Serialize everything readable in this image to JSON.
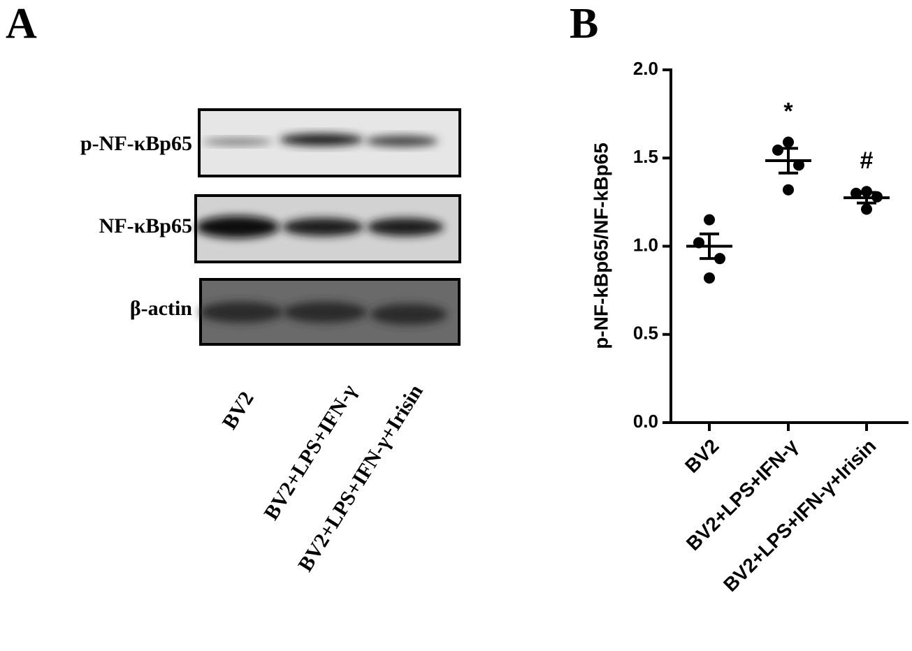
{
  "panel_a": {
    "label": "A",
    "rows": [
      "p-NF-κBp65",
      "NF-κBp65",
      "β-actin"
    ],
    "lanes": [
      "BV2",
      "BV2+LPS+IFN-γ",
      "BV2+LPS+IFN-γ+Irisin"
    ]
  },
  "chart_data": {
    "type": "dot",
    "panel_label": "B",
    "y_label": "p-NF-kBp65/NF-kBp65",
    "categories": [
      "BV2",
      "BV2+LPS+IFN-γ",
      "BV2+LPS+IFN-γ+Irisin"
    ],
    "points": [
      [
        1.15,
        1.02,
        0.93,
        0.82
      ],
      [
        1.59,
        1.545,
        1.46,
        1.32
      ],
      [
        1.31,
        1.3,
        1.28,
        1.21
      ]
    ],
    "means": [
      1.0,
      1.485,
      1.275
    ],
    "errors": [
      0.07,
      0.07,
      0.03
    ],
    "annotations": [
      null,
      "*",
      "#"
    ],
    "color": "#000000",
    "ylim": [
      0,
      2
    ],
    "yticks": [
      {
        "value": 0,
        "label": "0.0"
      },
      {
        "value": 0.5,
        "label": "0.5"
      },
      {
        "value": 1,
        "label": "1.0"
      },
      {
        "value": 1.5,
        "label": "1.5"
      },
      {
        "value": 2,
        "label": "2.0"
      }
    ]
  }
}
